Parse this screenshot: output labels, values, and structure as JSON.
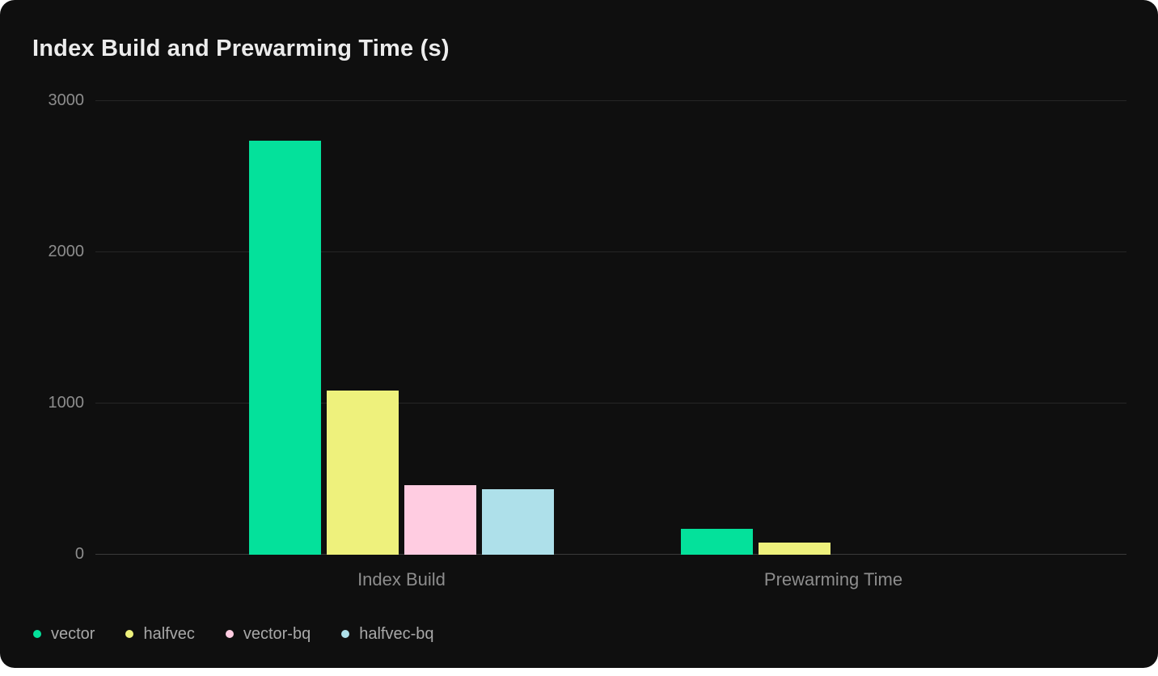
{
  "title": "Index Build and Prewarming Time (s)",
  "colors": {
    "page_bg": "#ffffff",
    "card_bg": "#0f0f0f",
    "grid": "#262626",
    "axis_line": "#3a3a3a",
    "title_text": "#ececec",
    "tick_text": "#8d8d8d",
    "legend_text": "#a8a8a8"
  },
  "chart_data": {
    "type": "bar",
    "title": "Index Build and Prewarming Time (s)",
    "categories": [
      "Index Build",
      "Prewarming Time"
    ],
    "series": [
      {
        "name": "vector",
        "color": "#04e19b",
        "values": [
          2740,
          170
        ]
      },
      {
        "name": "halfvec",
        "color": "#eef17c",
        "values": [
          1085,
          80
        ]
      },
      {
        "name": "vector-bq",
        "color": "#ffcce1",
        "values": [
          460,
          0
        ]
      },
      {
        "name": "halfvec-bq",
        "color": "#aee0ea",
        "values": [
          435,
          0
        ]
      }
    ],
    "xlabel": "",
    "ylabel": "",
    "ylim": [
      0,
      3000
    ],
    "yticks": [
      0,
      1000,
      2000,
      3000
    ],
    "grid": "horizontal",
    "legend_position": "bottom-left"
  }
}
